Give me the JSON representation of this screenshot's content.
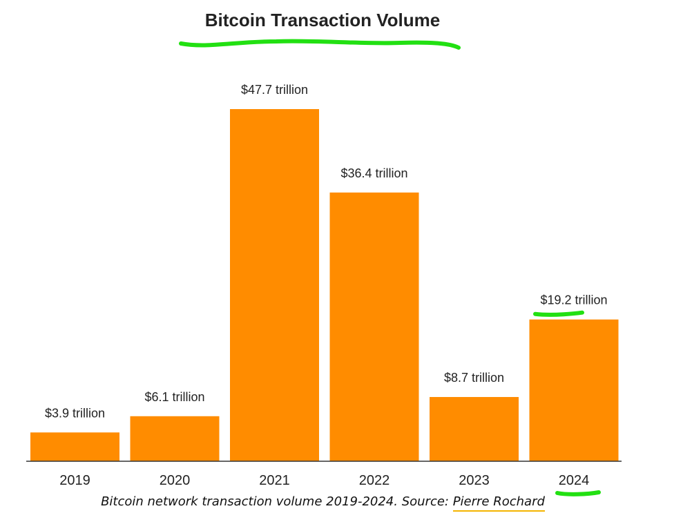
{
  "colors": {
    "bar": "#ff8c00",
    "highlight": "#22e012",
    "axis": "#333333",
    "link_underline": "#f4b400"
  },
  "caption": {
    "text": "Bitcoin network transaction volume 2019-2024. Source: ",
    "source_link": "Pierre Rochard"
  },
  "chart_data": {
    "type": "bar",
    "title": "Bitcoin Transaction Volume",
    "categories": [
      "2019",
      "2020",
      "2021",
      "2022",
      "2023",
      "2024"
    ],
    "values": [
      3.9,
      6.1,
      47.7,
      36.4,
      8.7,
      19.2
    ],
    "value_labels": [
      "$3.9 trillion",
      "$6.1 trillion",
      "$47.7 trillion",
      "$36.4 trillion",
      "$8.7 trillion",
      "$19.2 trillion"
    ],
    "xlabel": "",
    "ylabel": "",
    "ylim": [
      0,
      48
    ],
    "grid": false,
    "legend": "none",
    "highlighted_category": "2024"
  }
}
